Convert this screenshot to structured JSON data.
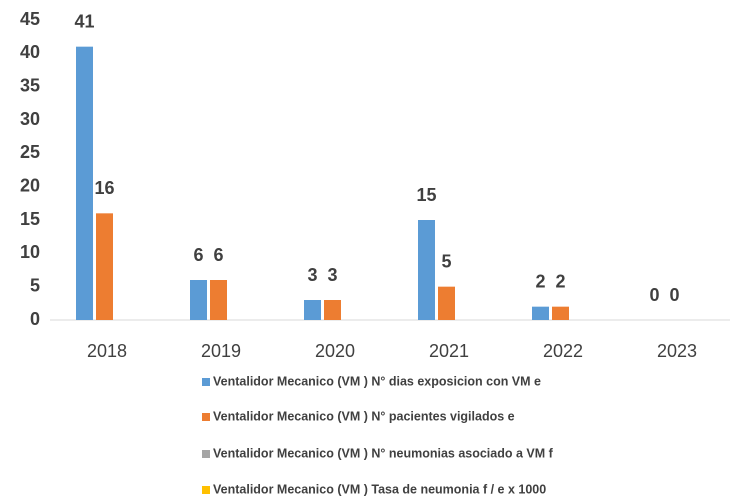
{
  "chart_data": {
    "type": "bar",
    "categories": [
      "2018",
      "2019",
      "2020",
      "2021",
      "2022",
      "2023"
    ],
    "series": [
      {
        "name": "Ventalidor Mecanico (VM ) N° dias exposicion con VM e",
        "color": "#5b9bd5",
        "values": [
          41,
          6,
          3,
          15,
          2,
          0
        ]
      },
      {
        "name": "Ventalidor Mecanico (VM ) N° pacientes vigilados e",
        "color": "#ed7d31",
        "values": [
          16,
          6,
          3,
          5,
          2,
          0
        ]
      },
      {
        "name": "Ventalidor Mecanico (VM ) N° neumonias asociado a VM f",
        "color": "#a5a5a5",
        "values": [
          null,
          null,
          null,
          null,
          null,
          null
        ]
      },
      {
        "name": "Ventalidor Mecanico (VM ) Tasa de neumonia f / e x 1000",
        "color": "#ffc000",
        "values": [
          null,
          null,
          null,
          null,
          null,
          null
        ]
      }
    ],
    "ylim": [
      0,
      45
    ],
    "yticks": [
      0,
      5,
      10,
      15,
      20,
      25,
      30,
      35,
      40,
      45
    ],
    "grid": false,
    "legend": "bottom"
  }
}
